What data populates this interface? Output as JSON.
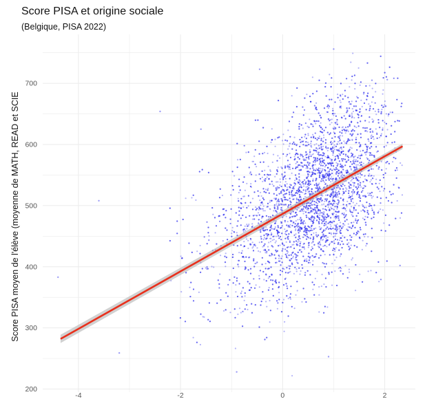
{
  "chart_data": {
    "type": "scatter",
    "title": "Score PISA et origine sociale",
    "subtitle": "(Belgique, PISA 2022)",
    "xlabel": "",
    "ylabel": "Score PISA moyen de l'élève (moyenne de MATH, READ et SCIE",
    "xlim": [
      -4.7,
      2.6
    ],
    "ylim": [
      195,
      780
    ],
    "x_ticks": [
      -4,
      -2,
      0,
      2
    ],
    "y_ticks": [
      200,
      300,
      400,
      500,
      600,
      700
    ],
    "x_tick_labels": [
      "-4",
      "-2",
      "0",
      "2"
    ],
    "y_tick_labels": [
      "200",
      "300",
      "400",
      "500",
      "600",
      "700"
    ],
    "grid": true,
    "legend": "none",
    "point_color": "#3a3af0",
    "regression": {
      "color": "#e8301c",
      "band_color": "#bdbdbd",
      "x_start": -4.35,
      "y_start": 282,
      "x_end": 2.35,
      "y_end": 597
    },
    "points_summary": {
      "n_approx": 6500,
      "x_center": 0.45,
      "x_sd": 0.95,
      "y_center": 480,
      "y_sd": 85
    },
    "notable_points": [
      {
        "x": -4.4,
        "y": 383
      },
      {
        "x": -3.6,
        "y": 508
      },
      {
        "x": -2.4,
        "y": 654
      },
      {
        "x": -0.9,
        "y": 228
      },
      {
        "x": -0.45,
        "y": 723
      },
      {
        "x": 1.0,
        "y": 756
      },
      {
        "x": 1.75,
        "y": 705
      },
      {
        "x": 2.05,
        "y": 706
      },
      {
        "x": 2.3,
        "y": 402
      },
      {
        "x": -3.2,
        "y": 259
      },
      {
        "x": -1.6,
        "y": 625
      },
      {
        "x": 0.9,
        "y": 253
      }
    ]
  }
}
